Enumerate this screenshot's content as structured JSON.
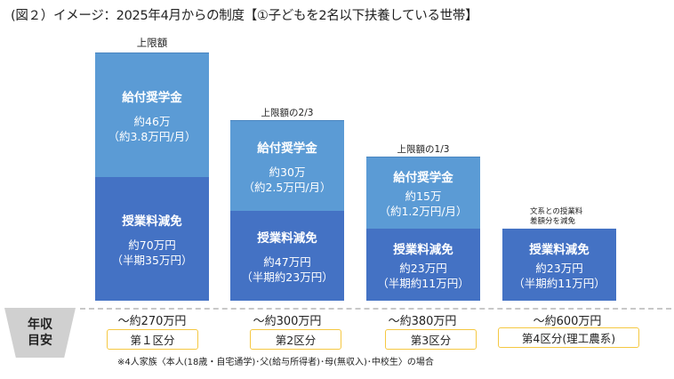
{
  "title": "(図２）イメージ：2025年4月からの制度【①子どもを2名以下扶養している世帯】",
  "colors": {
    "scholarship": "#5b9bd5",
    "tuition": "#4472c4",
    "band_box_border": "#f5c842"
  },
  "bars": [
    {
      "cap": "上限額",
      "scholarship": {
        "label": "給付奨学金",
        "amount": "約46万",
        "monthly": "（約3.8万円/月）"
      },
      "tuition": {
        "label": "授業料減免",
        "amount": "約70万円",
        "detail": "（半期35万円）"
      }
    },
    {
      "cap": "上限額の2/3",
      "scholarship": {
        "label": "給付奨学金",
        "amount": "約30万",
        "monthly": "（約2.5万円/月）"
      },
      "tuition": {
        "label": "授業料減免",
        "amount": "約47万円",
        "detail": "（半期約23万円）"
      }
    },
    {
      "cap": "上限額の1/3",
      "scholarship": {
        "label": "給付奨学金",
        "amount": "約15万",
        "monthly": "（約1.2万円/月）"
      },
      "tuition": {
        "label": "授業料減免",
        "amount": "約23万円",
        "detail": "（半期約11万円）"
      }
    },
    {
      "cap": "文系との授業料",
      "cap2": "差額分を減免",
      "tuition": {
        "label": "授業料減免",
        "amount": "約23万円",
        "detail": "（半期約11万円）"
      }
    }
  ],
  "income_label": [
    "年収",
    "目安"
  ],
  "bands": [
    {
      "income": "～約270万円",
      "category": "第１区分"
    },
    {
      "income": "～約300万円",
      "category": "第2区分"
    },
    {
      "income": "～約380万円",
      "category": "第3区分"
    },
    {
      "income": "～約600万円",
      "category": "第4区分(理工農系)"
    }
  ],
  "note": "※4人家族〈本人(18歳・自宅通学)･父(給与所得者)･母(無収入)･中校生〉の場合"
}
